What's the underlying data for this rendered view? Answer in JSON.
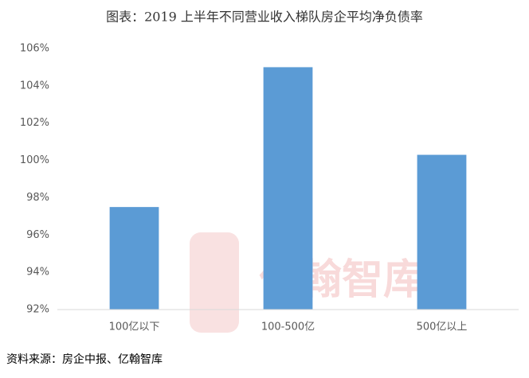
{
  "chart_data": {
    "type": "bar",
    "title": "图表：2019 上半年不同营业收入梯队房企平均净负债率",
    "categories": [
      "100亿以下",
      "100-500亿",
      "500亿以上"
    ],
    "values": [
      97.5,
      105.0,
      100.3
    ],
    "color": "#5b9bd5",
    "ylim": [
      92,
      106
    ],
    "yticks": [
      {
        "value": 92,
        "label": "92%"
      },
      {
        "value": 94,
        "label": "94%"
      },
      {
        "value": 96,
        "label": "96%"
      },
      {
        "value": 98,
        "label": "98%"
      },
      {
        "value": 100,
        "label": "100%"
      },
      {
        "value": 102,
        "label": "102%"
      },
      {
        "value": 104,
        "label": "104%"
      },
      {
        "value": 106,
        "label": "106%"
      }
    ],
    "grid": false,
    "watermark": "亿翰智库",
    "source": "资料来源：房企中报、亿翰智库"
  }
}
